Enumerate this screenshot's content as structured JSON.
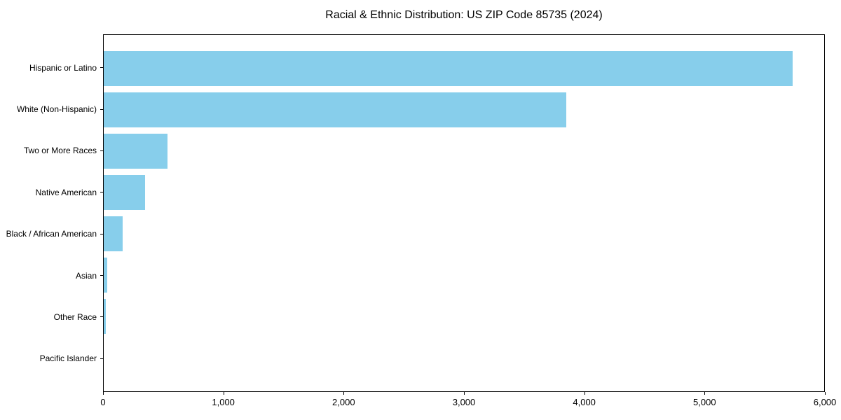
{
  "chart_data": {
    "type": "bar",
    "orientation": "horizontal",
    "title": "Racial & Ethnic Distribution: US ZIP Code 85735 (2024)",
    "categories": [
      "Hispanic or Latino",
      "White (Non-Hispanic)",
      "Two or More Races",
      "Native American",
      "Black / African American",
      "Asian",
      "Other Race",
      "Pacific Islander"
    ],
    "values": [
      5740,
      3850,
      530,
      345,
      160,
      30,
      18,
      0
    ],
    "xlabel": "",
    "ylabel": "",
    "xlim": [
      0,
      6000
    ],
    "x_ticks": [
      {
        "value": 0,
        "label": "0"
      },
      {
        "value": 1000,
        "label": "1,000"
      },
      {
        "value": 2000,
        "label": "2,000"
      },
      {
        "value": 3000,
        "label": "3,000"
      },
      {
        "value": 4000,
        "label": "4,000"
      },
      {
        "value": 5000,
        "label": "5,000"
      },
      {
        "value": 6000,
        "label": "6,000"
      }
    ],
    "bar_color": "#87CEEB",
    "axis_color": "#000000",
    "text_color": "#000000",
    "grid": false,
    "legend": false
  }
}
